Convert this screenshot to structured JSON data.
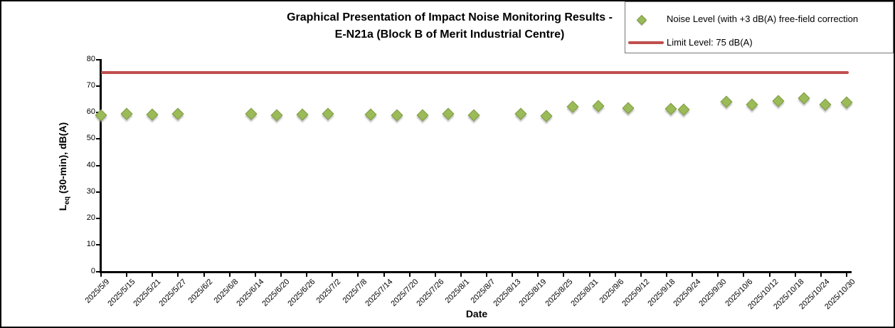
{
  "frame": {
    "background": "#ffffff",
    "border_color": "#000000"
  },
  "chart_data": {
    "type": "scatter",
    "title": [
      "Graphical Presentation of Impact Noise Monitoring Results -",
      "E-N21a (Block B of Merit Industrial Centre)"
    ],
    "xlabel": "Date",
    "ylabel": {
      "prefix": "L",
      "sub": "eq",
      "rest": " (30-min), dB(A)"
    },
    "ylim": [
      0,
      80
    ],
    "ytick_step": 10,
    "yticks": [
      0,
      10,
      20,
      30,
      40,
      50,
      60,
      70,
      80
    ],
    "grid": false,
    "legend_position": "top-right",
    "x_axis": {
      "start": "2025/5/9",
      "end": "2025/10/30",
      "tick_interval_days": 6
    },
    "xticks": [
      "2025/5/9",
      "2025/5/15",
      "2025/5/21",
      "2025/5/27",
      "2025/6/2",
      "2025/6/8",
      "2025/6/14",
      "2025/6/20",
      "2025/6/26",
      "2025/7/2",
      "2025/7/8",
      "2025/7/14",
      "2025/7/20",
      "2025/7/26",
      "2025/8/1",
      "2025/8/7",
      "2025/8/13",
      "2025/8/19",
      "2025/8/25",
      "2025/8/31",
      "2025/9/6",
      "2025/9/12",
      "2025/9/18",
      "2025/9/24",
      "2025/9/30",
      "2025/10/6",
      "2025/10/12",
      "2025/10/18",
      "2025/10/24",
      "2025/10/30"
    ],
    "series": [
      {
        "name": "Noise Level (with +3 dB(A) free-field correction",
        "marker": "diamond",
        "color": "#9BBB59",
        "border_color": "#7E9A44",
        "points": [
          {
            "date": "2025/5/9",
            "value": 58.9
          },
          {
            "date": "2025/5/15",
            "value": 59.2
          },
          {
            "date": "2025/5/21",
            "value": 59.0
          },
          {
            "date": "2025/5/27",
            "value": 59.2
          },
          {
            "date": "2025/6/13",
            "value": 59.2
          },
          {
            "date": "2025/6/19",
            "value": 58.9
          },
          {
            "date": "2025/6/25",
            "value": 59.1
          },
          {
            "date": "2025/7/1",
            "value": 59.3
          },
          {
            "date": "2025/7/11",
            "value": 59.1
          },
          {
            "date": "2025/7/17",
            "value": 58.9
          },
          {
            "date": "2025/7/23",
            "value": 58.7
          },
          {
            "date": "2025/7/29",
            "value": 59.4
          },
          {
            "date": "2025/8/4",
            "value": 58.8
          },
          {
            "date": "2025/8/15",
            "value": 59.2
          },
          {
            "date": "2025/8/21",
            "value": 58.5
          },
          {
            "date": "2025/8/27",
            "value": 62.0
          },
          {
            "date": "2025/9/2",
            "value": 62.2
          },
          {
            "date": "2025/9/9",
            "value": 61.6
          },
          {
            "date": "2025/9/19",
            "value": 61.3
          },
          {
            "date": "2025/9/22",
            "value": 60.9
          },
          {
            "date": "2025/10/2",
            "value": 64.0
          },
          {
            "date": "2025/10/8",
            "value": 62.8
          },
          {
            "date": "2025/10/14",
            "value": 64.1
          },
          {
            "date": "2025/10/20",
            "value": 65.2
          },
          {
            "date": "2025/10/25",
            "value": 62.9
          },
          {
            "date": "2025/10/30",
            "value": 63.7
          }
        ]
      }
    ],
    "limit_line": {
      "label": "Limit Level: 75 dB(A)",
      "value": 75,
      "color": "#C0504D"
    }
  }
}
